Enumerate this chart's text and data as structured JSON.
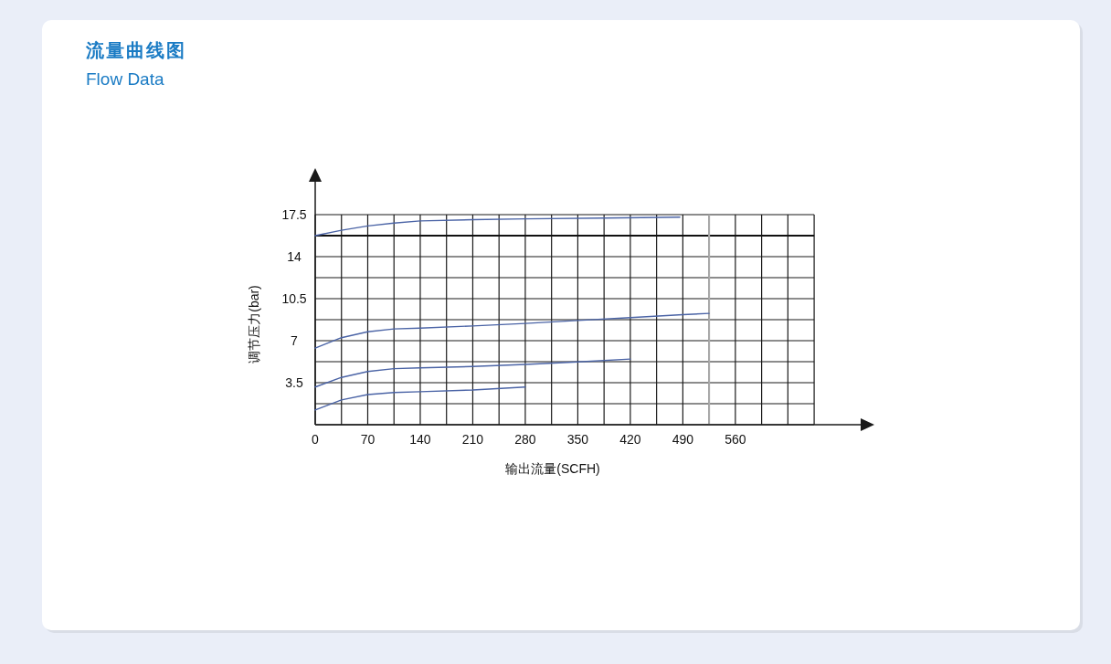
{
  "chart_data": {
    "type": "line",
    "title": "流量曲线图",
    "subtitle": "Flow Data",
    "xlabel": "输出流量(SCFH)",
    "ylabel": "调节压力(bar)",
    "xlim": [
      0,
      727
    ],
    "ylim": [
      0,
      17.5
    ],
    "xticks": [
      0,
      {
        "value": 35,
        "label": null
      },
      70,
      {
        "value": 105,
        "label": null
      },
      140,
      {
        "value": 175,
        "label": null
      },
      210,
      {
        "value": 245,
        "label": null
      },
      280,
      {
        "value": 315,
        "label": null
      },
      350,
      {
        "value": 385,
        "label": null
      },
      420,
      {
        "value": 455,
        "label": null
      },
      490,
      {
        "value": 525,
        "label": null
      },
      560,
      {
        "value": 595,
        "label": null
      },
      {
        "value": 630,
        "label": null
      },
      {
        "value": 665,
        "label": null
      }
    ],
    "yticks": [
      {
        "value": 0,
        "label": null
      },
      {
        "value": 1.75,
        "label": null
      },
      3.5,
      {
        "value": 5.25,
        "label": null
      },
      7,
      {
        "value": 8.75,
        "label": null
      },
      10.5,
      {
        "value": 12.25,
        "label": null
      },
      14,
      {
        "value": 15.75,
        "label": null
      },
      17.5
    ],
    "grid": true,
    "ref_lines": [
      {
        "axis": "y",
        "value": 15.75,
        "color": "#111111"
      },
      {
        "axis": "x",
        "value": 525,
        "color": "#aaaaaa"
      }
    ],
    "series": [
      {
        "color": "#4b64a6",
        "x": [
          0,
          35,
          70,
          105,
          140,
          210,
          280,
          385,
          486
        ],
        "values": [
          15.75,
          16.2,
          16.56,
          16.8,
          16.98,
          17.08,
          17.15,
          17.22,
          17.29
        ]
      },
      {
        "color": "#4b64a6",
        "x": [
          0,
          35,
          70,
          105,
          140,
          210,
          280,
          350,
          420,
          490,
          525
        ],
        "values": [
          6.38,
          7.25,
          7.74,
          7.98,
          8.05,
          8.23,
          8.44,
          8.68,
          8.92,
          9.17,
          9.27
        ]
      },
      {
        "color": "#4b64a6",
        "x": [
          0,
          35,
          70,
          105,
          140,
          210,
          280,
          350,
          420
        ],
        "values": [
          3.14,
          3.94,
          4.43,
          4.67,
          4.74,
          4.85,
          5.02,
          5.23,
          5.47
        ]
      },
      {
        "color": "#4b64a6",
        "x": [
          0,
          35,
          70,
          105,
          140,
          210,
          280
        ],
        "values": [
          1.22,
          2.06,
          2.51,
          2.68,
          2.75,
          2.89,
          3.14
        ]
      }
    ]
  }
}
